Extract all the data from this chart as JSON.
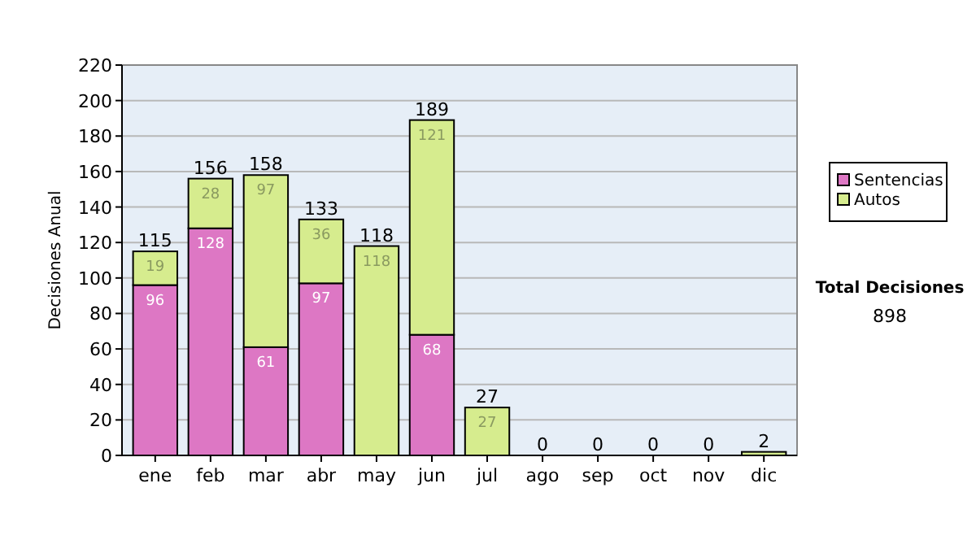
{
  "chart_data": {
    "type": "bar",
    "stacked": true,
    "ylabel": "Decisiones Anual",
    "categories": [
      "ene",
      "feb",
      "mar",
      "abr",
      "may",
      "jun",
      "jul",
      "ago",
      "sep",
      "oct",
      "nov",
      "dic"
    ],
    "series": [
      {
        "name": "Sentencias",
        "color": "#dd77c4",
        "values": [
          96,
          128,
          61,
          97,
          0,
          68,
          0,
          0,
          0,
          0,
          0,
          0
        ],
        "value_labels": [
          "96",
          "128",
          "61",
          "97",
          null,
          "68",
          null,
          null,
          null,
          null,
          null,
          null
        ]
      },
      {
        "name": "Autos",
        "color": "#d6ec8e",
        "values": [
          19,
          28,
          97,
          36,
          118,
          121,
          27,
          0,
          0,
          0,
          0,
          2
        ],
        "value_labels": [
          "19",
          "28",
          "97",
          "36",
          "118",
          "121",
          "27",
          null,
          null,
          null,
          null,
          null
        ]
      }
    ],
    "totals": [
      "115",
      "156",
      "158",
      "133",
      "118",
      "189",
      "27",
      "0",
      "0",
      "0",
      "0",
      "2"
    ],
    "ylim": [
      0,
      220
    ],
    "yticks": [
      0,
      20,
      40,
      60,
      80,
      100,
      120,
      140,
      160,
      180,
      200,
      220
    ],
    "grid": "y",
    "legend": "right",
    "annotations": [
      "Total Decisiones",
      "898"
    ]
  }
}
